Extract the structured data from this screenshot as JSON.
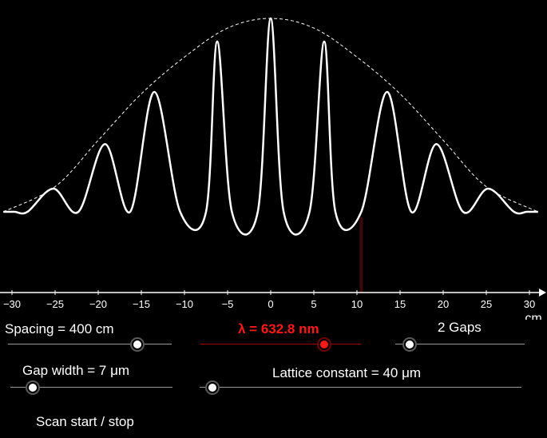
{
  "colors": {
    "background": "#000000",
    "curve": "#ffffff",
    "envelope": "#ffffff",
    "accent": "#ff1a1a",
    "marker": "#3a0a0a"
  },
  "chart_data": {
    "type": "line",
    "xlabel": "cm",
    "xlim": [
      -31,
      31
    ],
    "x_ticks": [
      -30,
      -25,
      -20,
      -15,
      -10,
      -5,
      0,
      5,
      10,
      15,
      20,
      25,
      30
    ],
    "series": [
      {
        "x": [
          -31,
          -29.7,
          -28.2,
          -25.2,
          -22.3,
          -19.2,
          -16.3,
          -13.5,
          -10.5,
          -7.5,
          -6.2,
          -4.5,
          -1.5,
          0,
          1.5,
          4.5,
          6.2,
          7.5,
          10.5,
          13.5,
          16.3,
          19.2,
          22.3,
          25.2,
          28.2,
          29.7,
          31
        ],
        "y": [
          0.0,
          0.0,
          0.0,
          0.12,
          0.0,
          0.35,
          0.0,
          0.62,
          0.0,
          0.0,
          0.88,
          0.0,
          0.0,
          1.0,
          0.0,
          0.0,
          0.88,
          0.0,
          0.0,
          0.62,
          0.0,
          0.35,
          0.0,
          0.12,
          0.0,
          0.0,
          0.0
        ]
      }
    ],
    "envelope": {
      "x": [
        -31,
        -25,
        -20,
        -15,
        -10,
        -5,
        0,
        5,
        10,
        15,
        20,
        25,
        31
      ],
      "y": [
        0.0,
        0.13,
        0.37,
        0.61,
        0.8,
        0.95,
        1.0,
        0.95,
        0.8,
        0.61,
        0.37,
        0.13,
        0.0
      ]
    },
    "scan_position": 10.5,
    "grid": false,
    "legend": "none"
  },
  "controls": {
    "spacing": {
      "label": "Spacing = 400 cm",
      "value_fraction": 0.79
    },
    "wavelength": {
      "label": "λ = 632.8 nm",
      "value_fraction": 0.77
    },
    "gaps": {
      "label": "2 Gaps",
      "value_fraction": 0.11
    },
    "gap_width": {
      "label": "Gap width = 7 μm",
      "value_fraction": 0.14
    },
    "lattice_constant": {
      "label": "Lattice constant = 40 μm",
      "value_fraction": 0.04
    },
    "scan": {
      "label": "Scan start / stop"
    }
  }
}
